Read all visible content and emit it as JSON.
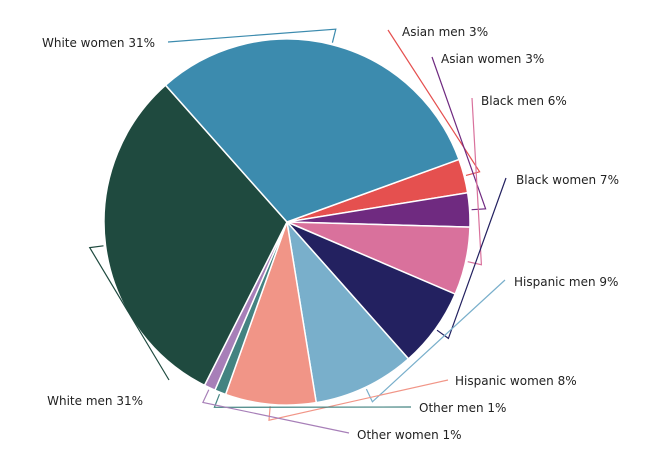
{
  "chart_data": {
    "type": "pie",
    "slices": [
      {
        "label": "Asian men",
        "value": 3,
        "text": "Asian men 3%",
        "color": "#e5504f"
      },
      {
        "label": "Asian women",
        "value": 3,
        "text": "Asian women 3%",
        "color": "#6f2a80"
      },
      {
        "label": "Black men",
        "value": 6,
        "text": "Black men 6%",
        "color": "#d9719c"
      },
      {
        "label": "Black women",
        "value": 7,
        "text": "Black women 7%",
        "color": "#232160"
      },
      {
        "label": "Hispanic men",
        "value": 9,
        "text": "Hispanic men 9%",
        "color": "#79afcb"
      },
      {
        "label": "Hispanic women",
        "value": 8,
        "text": "Hispanic women 8%",
        "color": "#f19587"
      },
      {
        "label": "Other men",
        "value": 1,
        "text": "Other men 1%",
        "color": "#438381"
      },
      {
        "label": "Other women",
        "value": 1,
        "text": "Other women 1%",
        "color": "#a77fb8"
      },
      {
        "label": "White men",
        "value": 31,
        "text": "White men 31%",
        "color": "#1f4a3f"
      },
      {
        "label": "White women",
        "value": 31,
        "text": "White women 31%",
        "color": "#3c8bae"
      }
    ]
  }
}
